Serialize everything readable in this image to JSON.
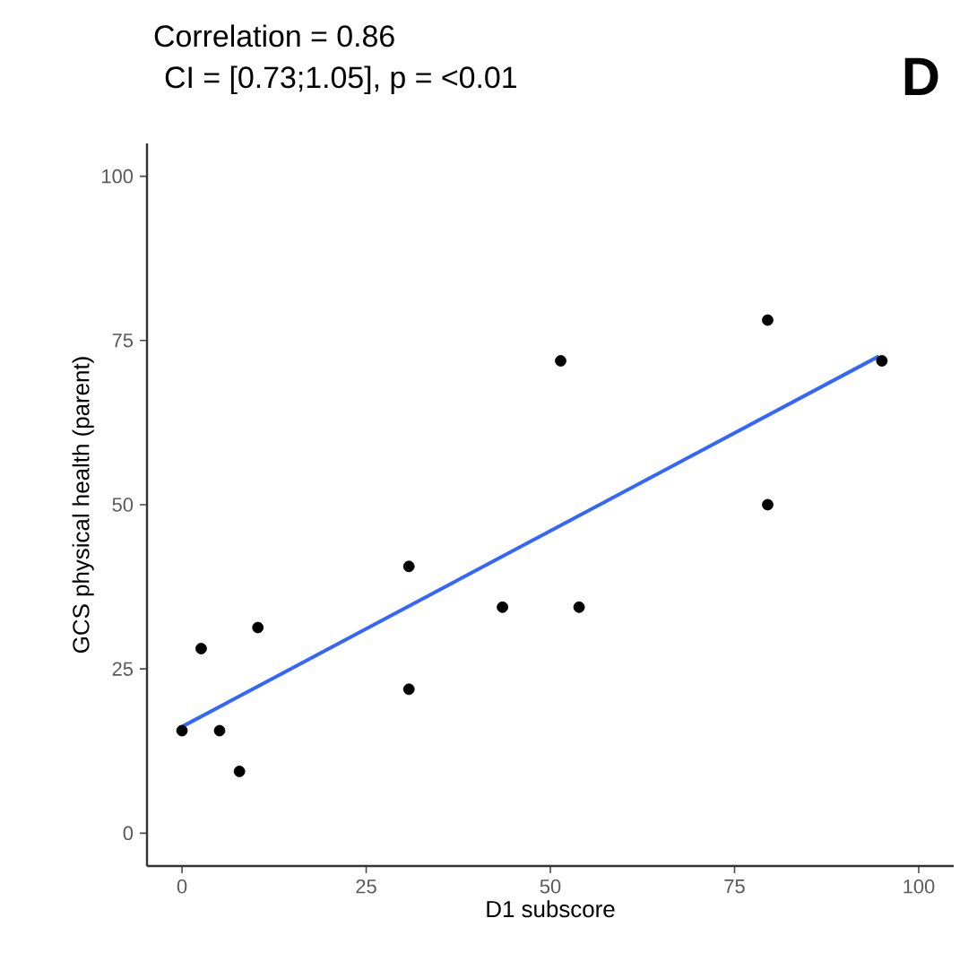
{
  "chart_data": {
    "type": "scatter",
    "title": "Correlation = 0.86",
    "subtitle": "CI = [0.73;1.05], p = <0.01",
    "xlabel": "D1 subscore",
    "ylabel": "GCS physical health (parent)",
    "annotations": [
      "D"
    ],
    "xlim": [
      -4.75,
      104.75
    ],
    "ylim": [
      -5,
      105
    ],
    "xticks": [
      0,
      25,
      50,
      75,
      100
    ],
    "yticks": [
      0,
      25,
      50,
      75,
      100
    ],
    "grid": false,
    "series": [
      {
        "marker": "circle",
        "color": "#000000",
        "x": [
          0,
          2.6,
          5.1,
          7.8,
          10.3,
          30.8,
          30.8,
          43.5,
          51.4,
          53.9,
          79.5,
          79.5,
          95
        ],
        "values": [
          15.6,
          28.1,
          15.6,
          9.4,
          31.3,
          40.6,
          21.9,
          34.4,
          71.9,
          34.4,
          78.1,
          50,
          71.9
        ]
      },
      {
        "type": "line",
        "marker": "none",
        "color": "#3366ff",
        "x": [
          0,
          94.6
        ],
        "values": [
          16.2,
          72.6
        ]
      }
    ]
  }
}
